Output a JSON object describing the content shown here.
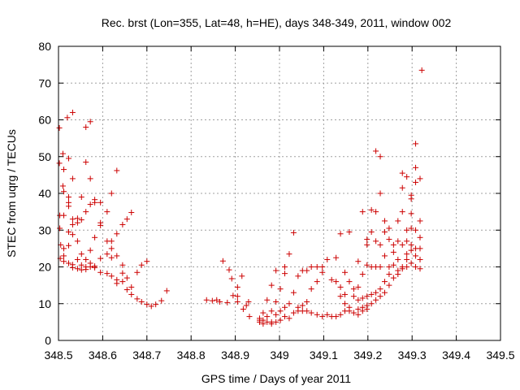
{
  "chart_data": {
    "type": "scatter",
    "title": "Rec. brst (Lon=355, Lat=48, h=HE), days 348-349, 2011, window 002",
    "xlabel": "GPS time / Days of year 2011",
    "ylabel": "STEC from uqrg / TECUs",
    "xlim": [
      348.5,
      349.5
    ],
    "ylim": [
      0,
      80
    ],
    "xticks": [
      "348.5",
      "348.6",
      "348.7",
      "348.8",
      "348.9",
      "349",
      "349.1",
      "349.2",
      "349.3",
      "349.4",
      "349.5"
    ],
    "yticks": [
      "0",
      "10",
      "20",
      "30",
      "40",
      "50",
      "60",
      "70",
      "80"
    ],
    "grid": true,
    "marker": "+",
    "color": "#cc0000",
    "series": [
      {
        "name": "STEC",
        "points": [
          [
            348.502,
            57.8
          ],
          [
            348.502,
            48.2
          ],
          [
            348.503,
            34.0
          ],
          [
            348.503,
            30.5
          ],
          [
            348.504,
            22.3
          ],
          [
            348.505,
            26.0
          ],
          [
            348.51,
            50.8
          ],
          [
            348.512,
            46.5
          ],
          [
            348.51,
            42.0
          ],
          [
            348.512,
            40.5
          ],
          [
            348.512,
            34.0
          ],
          [
            348.512,
            25.0
          ],
          [
            348.512,
            21.5
          ],
          [
            348.512,
            23.0
          ],
          [
            348.52,
            60.6
          ],
          [
            348.523,
            49.5
          ],
          [
            348.523,
            39.0
          ],
          [
            348.523,
            37.5
          ],
          [
            348.523,
            36.5
          ],
          [
            348.523,
            29.5
          ],
          [
            348.523,
            25.8
          ],
          [
            348.523,
            21.0
          ],
          [
            348.532,
            62.0
          ],
          [
            348.532,
            44.0
          ],
          [
            348.532,
            33.0
          ],
          [
            348.532,
            31.5
          ],
          [
            348.532,
            28.8
          ],
          [
            348.532,
            20.6
          ],
          [
            348.532,
            19.8
          ],
          [
            348.543,
            33.2
          ],
          [
            348.543,
            32.0
          ],
          [
            348.543,
            27.0
          ],
          [
            348.543,
            22.0
          ],
          [
            348.543,
            19.5
          ],
          [
            348.552,
            39.0
          ],
          [
            348.552,
            32.8
          ],
          [
            348.552,
            23.5
          ],
          [
            348.552,
            20.5
          ],
          [
            348.552,
            19.2
          ],
          [
            348.562,
            58.0
          ],
          [
            348.562,
            48.5
          ],
          [
            348.562,
            35.0
          ],
          [
            348.562,
            22.0
          ],
          [
            348.562,
            20.0
          ],
          [
            348.562,
            19.3
          ],
          [
            348.572,
            59.5
          ],
          [
            348.572,
            44.0
          ],
          [
            348.572,
            37.0
          ],
          [
            348.572,
            24.5
          ],
          [
            348.572,
            21.0
          ],
          [
            348.572,
            20.0
          ],
          [
            348.582,
            38.3
          ],
          [
            348.582,
            37.5
          ],
          [
            348.582,
            28.0
          ],
          [
            348.582,
            20.2
          ],
          [
            348.582,
            19.8
          ],
          [
            348.595,
            37.5
          ],
          [
            348.595,
            32.0
          ],
          [
            348.595,
            31.3
          ],
          [
            348.595,
            22.3
          ],
          [
            348.595,
            18.5
          ],
          [
            348.61,
            35.0
          ],
          [
            348.61,
            27.0
          ],
          [
            348.61,
            23.5
          ],
          [
            348.61,
            18.2
          ],
          [
            348.62,
            40.0
          ],
          [
            348.62,
            27.0
          ],
          [
            348.62,
            25.0
          ],
          [
            348.62,
            22.5
          ],
          [
            348.62,
            17.5
          ],
          [
            348.632,
            46.2
          ],
          [
            348.632,
            29.0
          ],
          [
            348.632,
            23.0
          ],
          [
            348.632,
            16.5
          ],
          [
            348.632,
            15.5
          ],
          [
            348.645,
            31.5
          ],
          [
            348.645,
            20.5
          ],
          [
            348.645,
            18.3
          ],
          [
            348.645,
            16.0
          ],
          [
            348.655,
            33.0
          ],
          [
            348.655,
            17.0
          ],
          [
            348.655,
            13.8
          ],
          [
            348.665,
            34.8
          ],
          [
            348.665,
            14.5
          ],
          [
            348.665,
            12.5
          ],
          [
            348.678,
            18.5
          ],
          [
            348.678,
            11.3
          ],
          [
            348.688,
            20.5
          ],
          [
            348.688,
            10.5
          ],
          [
            348.7,
            21.5
          ],
          [
            348.7,
            9.8
          ],
          [
            348.71,
            9.3
          ],
          [
            348.72,
            9.8
          ],
          [
            348.733,
            10.8
          ],
          [
            348.745,
            13.5
          ],
          [
            348.835,
            11.0
          ],
          [
            348.848,
            10.8
          ],
          [
            348.858,
            11.0
          ],
          [
            348.865,
            10.5
          ],
          [
            348.872,
            21.6
          ],
          [
            348.882,
            10.3
          ],
          [
            348.886,
            19.2
          ],
          [
            348.892,
            16.8
          ],
          [
            348.895,
            12.2
          ],
          [
            348.905,
            14.5
          ],
          [
            348.905,
            10.5
          ],
          [
            348.905,
            12.0
          ],
          [
            348.915,
            17.5
          ],
          [
            348.918,
            8.5
          ],
          [
            348.925,
            9.5
          ],
          [
            348.93,
            10.5
          ],
          [
            348.932,
            6.5
          ],
          [
            348.955,
            5.0
          ],
          [
            348.955,
            5.5
          ],
          [
            348.955,
            6.0
          ],
          [
            348.963,
            7.5
          ],
          [
            348.963,
            5.5
          ],
          [
            348.963,
            4.5
          ],
          [
            348.972,
            11.0
          ],
          [
            348.972,
            6.5
          ],
          [
            348.972,
            5.0
          ],
          [
            348.982,
            15.0
          ],
          [
            348.982,
            8.0
          ],
          [
            348.982,
            5.0
          ],
          [
            348.982,
            4.5
          ],
          [
            348.992,
            19.0
          ],
          [
            348.992,
            10.5
          ],
          [
            348.992,
            7.0
          ],
          [
            348.992,
            5.0
          ],
          [
            349.002,
            14.0
          ],
          [
            349.002,
            8.0
          ],
          [
            349.002,
            5.5
          ],
          [
            349.012,
            20.0
          ],
          [
            349.012,
            18.2
          ],
          [
            349.012,
            9.0
          ],
          [
            349.012,
            6.5
          ],
          [
            349.022,
            23.5
          ],
          [
            349.022,
            10.0
          ],
          [
            349.022,
            6.0
          ],
          [
            349.032,
            29.3
          ],
          [
            349.032,
            13.0
          ],
          [
            349.032,
            7.5
          ],
          [
            349.042,
            17.5
          ],
          [
            349.042,
            9.0
          ],
          [
            349.042,
            8.0
          ],
          [
            349.052,
            19.0
          ],
          [
            349.052,
            9.5
          ],
          [
            349.052,
            8.0
          ],
          [
            349.062,
            19.0
          ],
          [
            349.062,
            10.5
          ],
          [
            349.062,
            8.0
          ],
          [
            349.072,
            20.0
          ],
          [
            349.072,
            14.0
          ],
          [
            349.072,
            7.5
          ],
          [
            349.085,
            20.0
          ],
          [
            349.085,
            16.0
          ],
          [
            349.085,
            7.0
          ],
          [
            349.097,
            20.0
          ],
          [
            349.097,
            18.5
          ],
          [
            349.097,
            6.5
          ],
          [
            349.108,
            22.0
          ],
          [
            349.108,
            7.0
          ],
          [
            349.118,
            16.5
          ],
          [
            349.118,
            6.5
          ],
          [
            349.128,
            22.5
          ],
          [
            349.128,
            16.0
          ],
          [
            349.128,
            6.5
          ],
          [
            349.138,
            29.0
          ],
          [
            349.138,
            14.5
          ],
          [
            349.138,
            12.0
          ],
          [
            349.138,
            7.0
          ],
          [
            349.148,
            18.5
          ],
          [
            349.148,
            12.5
          ],
          [
            349.148,
            8.0
          ],
          [
            349.148,
            10.0
          ],
          [
            349.158,
            29.5
          ],
          [
            349.158,
            16.0
          ],
          [
            349.158,
            9.0
          ],
          [
            349.158,
            8.0
          ],
          [
            349.168,
            14.0
          ],
          [
            349.168,
            12.0
          ],
          [
            349.168,
            7.5
          ],
          [
            349.178,
            21.5
          ],
          [
            349.178,
            14.5
          ],
          [
            349.178,
            11.0
          ],
          [
            349.178,
            8.5
          ],
          [
            349.178,
            7.0
          ],
          [
            349.188,
            35.0
          ],
          [
            349.188,
            18.0
          ],
          [
            349.188,
            11.5
          ],
          [
            349.188,
            9.0
          ],
          [
            349.188,
            8.0
          ],
          [
            349.198,
            27.5
          ],
          [
            349.198,
            26.0
          ],
          [
            349.198,
            20.5
          ],
          [
            349.198,
            12.0
          ],
          [
            349.198,
            9.5
          ],
          [
            349.198,
            8.5
          ],
          [
            349.208,
            35.5
          ],
          [
            349.208,
            29.5
          ],
          [
            349.208,
            20.0
          ],
          [
            349.208,
            12.5
          ],
          [
            349.208,
            10.0
          ],
          [
            349.218,
            51.5
          ],
          [
            349.218,
            35.0
          ],
          [
            349.218,
            27.0
          ],
          [
            349.218,
            20.0
          ],
          [
            349.218,
            13.0
          ],
          [
            349.218,
            11.0
          ],
          [
            349.228,
            50.0
          ],
          [
            349.228,
            40.0
          ],
          [
            349.228,
            26.0
          ],
          [
            349.228,
            20.0
          ],
          [
            349.228,
            14.0
          ],
          [
            349.228,
            12.0
          ],
          [
            349.238,
            32.5
          ],
          [
            349.238,
            29.5
          ],
          [
            349.238,
            23.0
          ],
          [
            349.238,
            16.0
          ],
          [
            349.238,
            13.0
          ],
          [
            349.248,
            30.5
          ],
          [
            349.248,
            27.5
          ],
          [
            349.248,
            20.0
          ],
          [
            349.248,
            18.0
          ],
          [
            349.248,
            15.0
          ],
          [
            349.258,
            26.0
          ],
          [
            349.258,
            24.0
          ],
          [
            349.258,
            20.5
          ],
          [
            349.258,
            17.0
          ],
          [
            349.268,
            32.5
          ],
          [
            349.268,
            27.0
          ],
          [
            349.268,
            22.0
          ],
          [
            349.268,
            19.0
          ],
          [
            349.268,
            18.0
          ],
          [
            349.278,
            45.5
          ],
          [
            349.278,
            41.5
          ],
          [
            349.278,
            35.0
          ],
          [
            349.278,
            26.0
          ],
          [
            349.278,
            20.0
          ],
          [
            349.278,
            19.5
          ],
          [
            349.288,
            44.5
          ],
          [
            349.288,
            30.0
          ],
          [
            349.288,
            27.0
          ],
          [
            349.288,
            23.5
          ],
          [
            349.288,
            22.0
          ],
          [
            349.288,
            20.0
          ],
          [
            349.298,
            39.5
          ],
          [
            349.298,
            38.5
          ],
          [
            349.298,
            34.5
          ],
          [
            349.298,
            30.5
          ],
          [
            349.298,
            26.0
          ],
          [
            349.298,
            24.5
          ],
          [
            349.298,
            21.0
          ],
          [
            349.308,
            53.5
          ],
          [
            349.308,
            47.0
          ],
          [
            349.308,
            43.0
          ],
          [
            349.308,
            30.0
          ],
          [
            349.308,
            25.0
          ],
          [
            349.308,
            23.0
          ],
          [
            349.308,
            20.0
          ],
          [
            349.318,
            44.0
          ],
          [
            349.318,
            32.5
          ],
          [
            349.318,
            28.0
          ],
          [
            349.318,
            25.0
          ],
          [
            349.318,
            22.0
          ],
          [
            349.318,
            19.5
          ],
          [
            349.322,
            73.5
          ]
        ]
      }
    ]
  }
}
